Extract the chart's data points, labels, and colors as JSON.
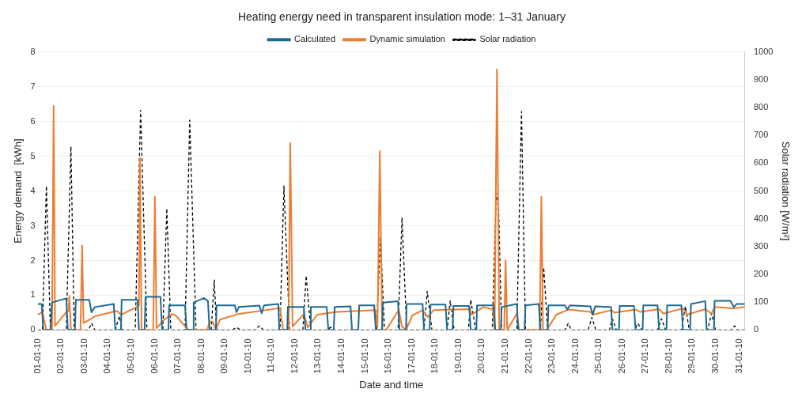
{
  "chart_data": {
    "type": "line",
    "title": "Heating energy need in transparent insulation mode: 1–31 January",
    "xlabel": "Date and time",
    "ylabel": "Energy demand  [kWh]",
    "y2label": "Solar radiation [W/m²]",
    "xlim": [
      "--01-01T00:00",
      "--01-31T06:00"
    ],
    "xticks": [
      {
        "value": "--01-01",
        "label": "01-01-10"
      },
      {
        "value": "--01-02",
        "label": "02-01-10"
      },
      {
        "value": "--01-03",
        "label": "03-01-10"
      },
      {
        "value": "--01-04",
        "label": "04-01-10"
      },
      {
        "value": "--01-05",
        "label": "05-01-10"
      },
      {
        "value": "--01-06",
        "label": "06-01-10"
      },
      {
        "value": "--01-07",
        "label": "07-01-10"
      },
      {
        "value": "--01-08",
        "label": "08-01-10"
      },
      {
        "value": "--01-09",
        "label": "09-01-10"
      },
      {
        "value": "--01-10",
        "label": "10-01-10"
      },
      {
        "value": "--01-11",
        "label": "11-01-10"
      },
      {
        "value": "--01-12",
        "label": "12-01-10"
      },
      {
        "value": "--01-13",
        "label": "13-01-10"
      },
      {
        "value": "--01-14",
        "label": "14-01-10"
      },
      {
        "value": "--01-15",
        "label": "15-01-10"
      },
      {
        "value": "--01-16",
        "label": "16-01-10"
      },
      {
        "value": "--01-17",
        "label": "17-01-10"
      },
      {
        "value": "--01-18",
        "label": "18-01-10"
      },
      {
        "value": "--01-19",
        "label": "19-01-10"
      },
      {
        "value": "--01-20",
        "label": "20-01-10"
      },
      {
        "value": "--01-21",
        "label": "21-01-10"
      },
      {
        "value": "--01-22",
        "label": "22-01-10"
      },
      {
        "value": "--01-23",
        "label": "23-01-10"
      },
      {
        "value": "--01-24",
        "label": "24-01-10"
      },
      {
        "value": "--01-25",
        "label": "25-01-10"
      },
      {
        "value": "--01-26",
        "label": "26-01-10"
      },
      {
        "value": "--01-27",
        "label": "27-01-10"
      },
      {
        "value": "--01-28",
        "label": "28-01-10"
      },
      {
        "value": "--01-29",
        "label": "29-01-10"
      },
      {
        "value": "--01-30",
        "label": "30-01-10"
      },
      {
        "value": "--01-31",
        "label": "31-01-10"
      }
    ],
    "ylim": [
      0,
      8
    ],
    "yticks": [
      0,
      1,
      2,
      3,
      4,
      5,
      6,
      7,
      8
    ],
    "y2lim": [
      0,
      1000
    ],
    "y2ticks": [
      0,
      100,
      200,
      300,
      400,
      500,
      600,
      700,
      800,
      900,
      1000
    ],
    "grid": "y",
    "legend": "top",
    "marker": "none",
    "series": [
      {
        "name": "Calculated",
        "color": "#1d6a91",
        "line_style": "solid",
        "x": [
          "--01-01T00:00",
          "--01-01T04:05",
          "--01-01T05:46",
          "--01-01T12:58",
          "--01-01T14:38",
          "--01-02T05:17",
          "--01-02T06:58",
          "--01-02T14:10",
          "--01-02T15:07",
          "--01-03T04:48",
          "--01-03T07:12",
          "--01-03T10:34",
          "--01-04T06:00",
          "--01-04T07:41",
          "--01-04T13:26",
          "--01-04T14:10",
          "--01-05T06:29",
          "--01-05T07:55",
          "--01-05T13:41",
          "--01-05T14:38",
          "--01-06T06:00",
          "--01-06T07:41",
          "--01-06T14:10",
          "--01-06T14:53",
          "--01-07T07:12",
          "--01-07T08:53",
          "--01-07T15:22",
          "--01-07T16:05",
          "--01-08T02:38",
          "--01-08T06:43",
          "--01-08T08:24",
          "--01-08T14:53",
          "--01-08T15:36",
          "--01-09T10:19",
          "--01-09T12:00",
          "--01-09T14:24",
          "--01-10T11:31",
          "--01-10T13:55",
          "--01-10T16:19",
          "--01-11T06:58",
          "--01-11T07:55",
          "--01-11T16:05",
          "--01-11T16:48",
          "--01-12T09:07",
          "--01-12T10:48",
          "--01-12T15:36",
          "--01-12T16:19",
          "--01-13T08:38",
          "--01-13T10:19",
          "--01-13T15:50",
          "--01-13T16:48",
          "--01-14T09:07",
          "--01-14T10:34",
          "--01-14T17:02",
          "--01-14T18:00",
          "--01-15T09:22",
          "--01-15T11:02",
          "--01-15T17:31",
          "--01-15T18:14",
          "--01-16T09:50",
          "--01-16T11:17",
          "--01-16T18:00",
          "--01-16T18:43",
          "--01-17T11:02",
          "--01-17T12:29",
          "--01-17T18:14",
          "--01-17T19:12",
          "--01-18T10:34",
          "--01-18T12:14",
          "--01-18T17:46",
          "--01-18T18:43",
          "--01-19T10:48",
          "--01-19T12:29",
          "--01-19T18:14",
          "--01-19T18:58",
          "--01-20T12:00",
          "--01-20T13:41",
          "--01-20T19:26",
          "--01-20T20:10",
          "--01-21T11:46",
          "--01-21T13:12",
          "--01-21T19:41",
          "--01-21T20:38",
          "--01-22T10:19",
          "--01-22T12:00",
          "--01-22T19:26",
          "--01-22T20:10",
          "--01-23T13:12",
          "--01-23T15:36",
          "--01-23T18:14",
          "--01-24T15:22",
          "--01-24T17:46",
          "--01-24T20:10",
          "--01-25T12:29",
          "--01-25T13:55",
          "--01-25T20:38",
          "--01-25T21:22",
          "--01-26T12:00",
          "--01-26T13:41",
          "--01-26T20:53",
          "--01-26T21:36",
          "--01-27T12:14",
          "--01-27T13:55",
          "--01-27T21:22",
          "--01-27T22:05",
          "--01-28T12:43",
          "--01-28T14:24",
          "--01-28T21:36",
          "--01-28T22:34",
          "--01-29T13:12",
          "--01-29T14:38",
          "--01-29T22:05",
          "--01-29T22:48",
          "--01-30T15:07",
          "--01-30T18:29",
          "--01-30T21:36",
          "--01-31T05:46"
        ],
        "values": [
          0.75,
          0.75,
          0,
          0,
          0.79,
          0.91,
          0,
          0,
          0.87,
          0.87,
          0.51,
          0.66,
          0.75,
          0,
          0,
          0.87,
          0.87,
          0,
          0,
          0.95,
          0.95,
          0,
          0,
          0.71,
          0.71,
          0,
          0,
          0.79,
          0.92,
          0.83,
          0,
          0,
          0.71,
          0.71,
          0.51,
          0.66,
          0.7,
          0.48,
          0.71,
          0.75,
          0,
          0,
          0.66,
          0.66,
          0,
          0,
          0.66,
          0.66,
          0,
          0,
          0.66,
          0.68,
          0,
          0,
          0.71,
          0.71,
          0,
          0,
          0.79,
          0.83,
          0,
          0,
          0.75,
          0.75,
          0,
          0,
          0.73,
          0.73,
          0,
          0,
          0.69,
          0.69,
          0,
          0,
          0.71,
          0.71,
          0,
          0,
          0.66,
          0.75,
          0,
          0,
          0.71,
          0.75,
          0,
          0,
          0.71,
          0.71,
          0.59,
          0.71,
          0.68,
          0.44,
          0.68,
          0.66,
          0,
          0,
          0.69,
          0.69,
          0,
          0,
          0.71,
          0.71,
          0,
          0,
          0.71,
          0.71,
          0,
          0,
          0.75,
          0.83,
          0,
          0,
          0.84,
          0.84,
          0.66,
          0.75,
          0.75
        ]
      },
      {
        "name": "Dynamic simulation",
        "color": "#ed7d31",
        "line_style": "solid",
        "x": [
          "--01-01T00:00",
          "--01-01T04:48",
          "--01-01T07:12",
          "--01-01T08:53",
          "--01-01T14:38",
          "--01-01T16:19",
          "--01-01T17:46",
          "--01-02T05:17",
          "--01-02T07:41",
          "--01-02T08:24",
          "--01-02T10:05",
          "--01-02T19:55",
          "--01-02T21:36",
          "--01-02T23:02",
          "--01-03T11:17",
          "--01-04T09:22",
          "--01-04T13:26",
          "--01-05T06:29",
          "--01-05T07:55",
          "--01-05T08:53",
          "--01-05T10:34",
          "--01-05T22:34",
          "--01-06T00:14",
          "--01-06T01:55",
          "--01-06T10:05",
          "--01-06T18:14",
          "--01-06T22:19",
          "--01-07T10:19",
          "--01-08T06:00",
          "--01-08T08:24",
          "--01-08T11:31",
          "--01-08T14:53",
          "--01-08T18:58",
          "--01-09T13:41",
          "--01-11T06:14",
          "--01-11T08:38",
          "--01-11T12:00",
          "--01-11T17:31",
          "--01-11T19:12",
          "--01-11T21:36",
          "--01-12T09:07",
          "--01-12T13:12",
          "--01-12T22:48",
          "--01-13T19:12",
          "--01-15T10:19",
          "--01-15T12:43",
          "--01-15T15:07",
          "--01-15T17:31",
          "--01-15T21:36",
          "--01-16T10:34",
          "--01-16T13:55",
          "--01-16T18:00",
          "--01-17T00:29",
          "--01-17T11:02",
          "--01-17T16:34",
          "--01-17T22:19",
          "--01-19T11:46",
          "--01-19T13:26",
          "--01-20T01:26",
          "--01-20T11:17",
          "--01-20T12:58",
          "--01-20T15:22",
          "--01-20T17:46",
          "--01-20T22:48",
          "--01-21T00:14",
          "--01-21T01:55",
          "--01-21T11:46",
          "--01-21T14:10",
          "--01-22T11:17",
          "--01-22T12:58",
          "--01-22T14:38",
          "--01-22T18:29",
          "--01-23T04:19",
          "--01-23T17:17",
          "--01-24T15:22",
          "--01-24T17:46",
          "--01-25T13:12",
          "--01-25T15:36",
          "--01-26T13:41",
          "--01-26T18:29",
          "--01-27T13:55",
          "--01-27T18:00",
          "--01-28T14:24",
          "--01-28T18:29",
          "--01-29T13:12",
          "--01-29T19:41",
          "--01-29T22:48",
          "--01-30T17:31",
          "--01-31T05:46"
        ],
        "values": [
          0.44,
          0.52,
          0.2,
          0,
          0,
          6.45,
          0.12,
          0.51,
          0.55,
          0.98,
          0,
          0,
          2.43,
          0.2,
          0.4,
          0.55,
          0.44,
          0.67,
          0.7,
          4.95,
          0,
          0,
          3.83,
          0.05,
          0.3,
          0.46,
          0.4,
          0,
          0,
          0.24,
          0.24,
          0,
          0.3,
          0.46,
          0.62,
          0.62,
          0,
          0,
          5.38,
          0.1,
          0.46,
          0.07,
          0.44,
          0.52,
          0.57,
          0.1,
          5.15,
          0,
          0,
          0.57,
          0.1,
          0,
          0.42,
          0.57,
          0.37,
          0.57,
          0.6,
          0.44,
          0.66,
          0.59,
          0,
          7.5,
          0,
          0,
          2.0,
          0,
          0.47,
          0,
          0,
          3.83,
          0,
          0,
          0.44,
          0.59,
          0.52,
          0.44,
          0.57,
          0.5,
          0.59,
          0.52,
          0.6,
          0.47,
          0.62,
          0.44,
          0.6,
          0.47,
          0.66,
          0.62,
          0.66
        ]
      },
      {
        "name": "Solar radiation",
        "color": "#000000",
        "line_style": "dashed",
        "axis": "y2",
        "x": [
          "--01-01T00:00",
          "--01-01T04:48",
          "--01-01T08:53",
          "--01-01T12:58",
          "--01-02T05:17",
          "--01-02T10:05",
          "--01-02T13:26",
          "--01-03T04:05",
          "--01-03T07:12",
          "--01-03T10:34",
          "--01-04T07:41",
          "--01-04T11:46",
          "--01-04T14:53",
          "--01-05T04:05",
          "--01-05T09:36",
          "--01-05T16:05",
          "--01-06T08:24",
          "--01-06T12:29",
          "--01-06T16:34",
          "--01-07T07:12",
          "--01-07T12:00",
          "--01-07T18:29",
          "--01-08T10:05",
          "--01-08T13:12",
          "--01-08T15:36",
          "--01-09T07:55",
          "--01-09T12:00",
          "--01-09T16:05",
          "--01-10T07:26",
          "--01-10T11:31",
          "--01-10T15:36",
          "--01-11T08:38",
          "--01-11T12:43",
          "--01-11T18:29",
          "--01-12T08:10",
          "--01-12T11:31",
          "--01-12T16:19",
          "--01-13T09:22",
          "--01-13T12:43",
          "--01-13T15:50",
          "--01-15T11:46",
          "--01-15T15:50",
          "--01-15T19:55",
          "--01-16T09:50",
          "--01-16T13:55",
          "--01-16T18:43",
          "--01-17T12:29",
          "--01-17T15:50",
          "--01-17T20:38",
          "--01-18T12:14",
          "--01-18T15:22",
          "--01-18T19:26",
          "--01-19T10:05",
          "--01-19T12:29",
          "--01-19T17:31",
          "--01-20T10:34",
          "--01-20T14:38",
          "--01-20T17:02",
          "--01-20T20:10",
          "--01-21T11:46",
          "--01-21T16:34",
          "--01-21T20:38",
          "--01-22T12:00",
          "--01-22T15:22",
          "--01-22T19:26",
          "--01-23T13:12",
          "--01-23T16:34",
          "--01-23T19:41",
          "--01-24T12:58",
          "--01-24T16:48",
          "--01-24T20:53",
          "--01-25T10:48",
          "--01-25T13:55",
          "--01-25T18:00",
          "--01-26T12:43",
          "--01-26T16:05",
          "--01-26T20:10",
          "--01-27T12:14",
          "--01-27T16:19",
          "--01-27T20:24",
          "--01-28T12:43",
          "--01-28T16:48",
          "--01-28T20:53",
          "--01-29T15:36",
          "--01-29T19:41",
          "--01-29T23:46",
          "--01-30T15:50",
          "--01-30T19:12",
          "--01-30T22:19",
          "--01-31T05:46"
        ],
        "values": [
          0,
          0,
          518,
          0,
          0,
          660,
          0,
          0,
          24,
          0,
          0,
          50,
          0,
          0,
          791,
          0,
          0,
          437,
          0,
          0,
          755,
          0,
          0,
          180,
          0,
          0,
          10,
          0,
          0,
          15,
          0,
          0,
          518,
          0,
          0,
          195,
          0,
          0,
          10,
          0,
          0,
          331,
          0,
          0,
          405,
          0,
          0,
          139,
          0,
          0,
          105,
          0,
          0,
          109,
          0,
          0,
          493,
          440,
          0,
          0,
          786,
          0,
          0,
          225,
          0,
          0,
          24,
          0,
          0,
          45,
          0,
          0,
          40,
          0,
          0,
          24,
          0,
          0,
          40,
          0,
          0,
          85,
          0,
          0,
          60,
          0,
          0,
          15,
          0,
          0
        ]
      }
    ]
  }
}
